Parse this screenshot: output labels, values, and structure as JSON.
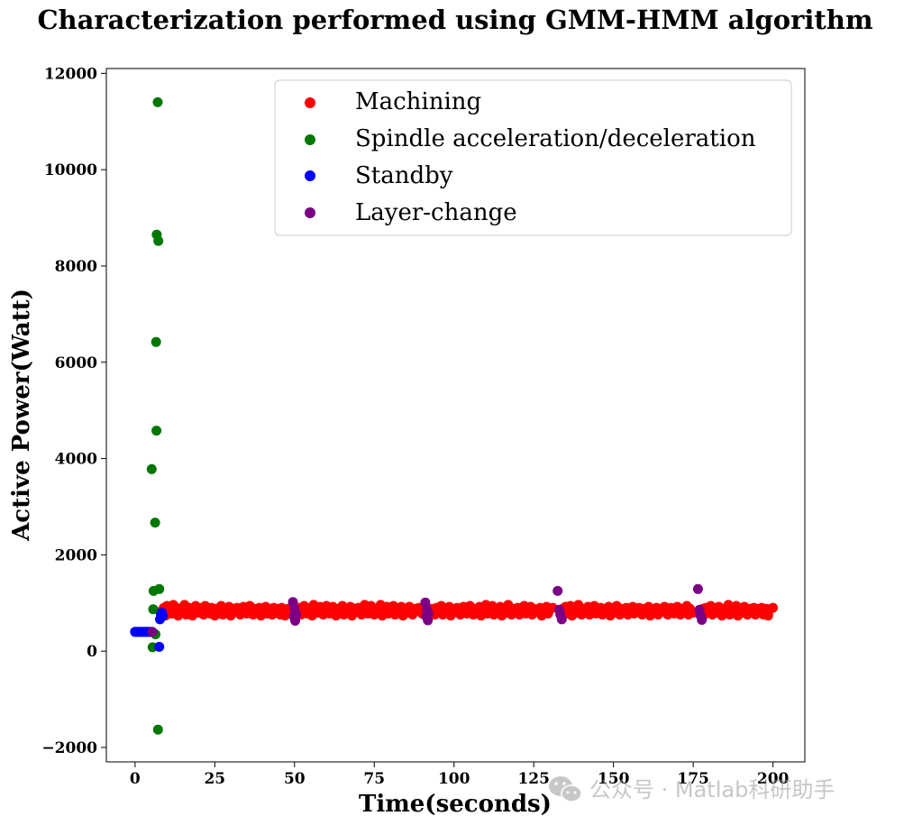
{
  "chart_data": {
    "type": "scatter",
    "title": "Characterization performed using GMM-HMM algorithm",
    "xlabel": "Time(seconds)",
    "ylabel": "Active Power(Watt)",
    "xlim": [
      -9,
      210
    ],
    "ylim": [
      -2300,
      12100
    ],
    "xticks": [
      0,
      25,
      50,
      75,
      100,
      125,
      150,
      175,
      200
    ],
    "yticks": [
      -2000,
      0,
      2000,
      4000,
      6000,
      8000,
      10000,
      12000
    ],
    "xtick_labels": [
      "0",
      "25",
      "50",
      "75",
      "100",
      "125",
      "150",
      "175",
      "200"
    ],
    "ytick_labels": [
      "−2000",
      "0",
      "2000",
      "4000",
      "6000",
      "8000",
      "10000",
      "12000"
    ],
    "legend_position": "top-right",
    "series": [
      {
        "name": "Machining",
        "color": "#ff0000",
        "points": [
          [
            8,
            820
          ],
          [
            9,
            900
          ],
          [
            9.5,
            740
          ],
          [
            10,
            940
          ],
          [
            11,
            860
          ],
          [
            11.5,
            780
          ],
          [
            12,
            960
          ],
          [
            13,
            900
          ],
          [
            13.5,
            740
          ],
          [
            14,
            880
          ],
          [
            15,
            820
          ],
          [
            15.5,
            960
          ],
          [
            16,
            760
          ],
          [
            17,
            900
          ],
          [
            17.5,
            840
          ],
          [
            18,
            740
          ],
          [
            19,
            940
          ],
          [
            19.5,
            880
          ],
          [
            20,
            800
          ],
          [
            21,
            900
          ],
          [
            21.5,
            760
          ],
          [
            22,
            940
          ],
          [
            23,
            840
          ],
          [
            23.5,
            780
          ],
          [
            24,
            900
          ],
          [
            25,
            740
          ],
          [
            25.5,
            880
          ],
          [
            26,
            820
          ],
          [
            27,
            940
          ],
          [
            27.5,
            760
          ],
          [
            28,
            880
          ],
          [
            29,
            800
          ],
          [
            29.5,
            920
          ],
          [
            30,
            740
          ],
          [
            31,
            880
          ],
          [
            31.5,
            820
          ],
          [
            32,
            900
          ],
          [
            33,
            760
          ],
          [
            33.5,
            880
          ],
          [
            34,
            920
          ],
          [
            35,
            780
          ],
          [
            35.5,
            860
          ],
          [
            36,
            940
          ],
          [
            37,
            760
          ],
          [
            37.5,
            880
          ],
          [
            38,
            820
          ],
          [
            39,
            900
          ],
          [
            39.5,
            740
          ],
          [
            40,
            860
          ],
          [
            41,
            920
          ],
          [
            41.5,
            780
          ],
          [
            42,
            880
          ],
          [
            43,
            760
          ],
          [
            43.5,
            900
          ],
          [
            44,
            820
          ],
          [
            45,
            880
          ],
          [
            45.5,
            760
          ],
          [
            46,
            900
          ],
          [
            47,
            740
          ],
          [
            48,
            880
          ],
          [
            49,
            820
          ],
          [
            51,
            900
          ],
          [
            52,
            760
          ],
          [
            53,
            940
          ],
          [
            53.5,
            840
          ],
          [
            54,
            780
          ],
          [
            55,
            900
          ],
          [
            55.5,
            740
          ],
          [
            56,
            960
          ],
          [
            57,
            880
          ],
          [
            57.5,
            800
          ],
          [
            58,
            920
          ],
          [
            59,
            760
          ],
          [
            59.5,
            880
          ],
          [
            60,
            940
          ],
          [
            61,
            780
          ],
          [
            61.5,
            860
          ],
          [
            62,
            920
          ],
          [
            63,
            740
          ],
          [
            63.5,
            880
          ],
          [
            64,
            820
          ],
          [
            65,
            940
          ],
          [
            65.5,
            760
          ],
          [
            66,
            880
          ],
          [
            67,
            800
          ],
          [
            67.5,
            920
          ],
          [
            68,
            740
          ],
          [
            69,
            880
          ],
          [
            69.5,
            820
          ],
          [
            70,
            900
          ],
          [
            71,
            760
          ],
          [
            71.5,
            880
          ],
          [
            72,
            960
          ],
          [
            73,
            780
          ],
          [
            73.5,
            860
          ],
          [
            74,
            940
          ],
          [
            75,
            760
          ],
          [
            75.5,
            880
          ],
          [
            76,
            820
          ],
          [
            77,
            960
          ],
          [
            77.5,
            740
          ],
          [
            78,
            880
          ],
          [
            79,
            920
          ],
          [
            79.5,
            780
          ],
          [
            80,
            860
          ],
          [
            81,
            940
          ],
          [
            81.5,
            760
          ],
          [
            82,
            880
          ],
          [
            83,
            820
          ],
          [
            83.5,
            920
          ],
          [
            84,
            740
          ],
          [
            85,
            880
          ],
          [
            85.5,
            800
          ],
          [
            86,
            920
          ],
          [
            87,
            760
          ],
          [
            87.5,
            880
          ],
          [
            88,
            840
          ],
          [
            89,
            900
          ],
          [
            90,
            780
          ],
          [
            93,
            880
          ],
          [
            94,
            760
          ],
          [
            94.5,
            900
          ],
          [
            95,
            820
          ],
          [
            96,
            940
          ],
          [
            96.5,
            760
          ],
          [
            97,
            880
          ],
          [
            98,
            800
          ],
          [
            98.5,
            920
          ],
          [
            99,
            740
          ],
          [
            100,
            880
          ],
          [
            100.5,
            820
          ],
          [
            101,
            900
          ],
          [
            102,
            760
          ],
          [
            102.5,
            880
          ],
          [
            103,
            920
          ],
          [
            104,
            780
          ],
          [
            104.5,
            860
          ],
          [
            105,
            940
          ],
          [
            106,
            760
          ],
          [
            106.5,
            880
          ],
          [
            107,
            820
          ],
          [
            108,
            920
          ],
          [
            108.5,
            740
          ],
          [
            109,
            880
          ],
          [
            110,
            960
          ],
          [
            110.5,
            780
          ],
          [
            111,
            860
          ],
          [
            112,
            940
          ],
          [
            112.5,
            760
          ],
          [
            113,
            880
          ],
          [
            114,
            820
          ],
          [
            114.5,
            920
          ],
          [
            115,
            740
          ],
          [
            116,
            880
          ],
          [
            116.5,
            800
          ],
          [
            117,
            960
          ],
          [
            118,
            760
          ],
          [
            118.5,
            880
          ],
          [
            119,
            840
          ],
          [
            120,
            900
          ],
          [
            120.5,
            760
          ],
          [
            121,
            880
          ],
          [
            122,
            940
          ],
          [
            122.5,
            780
          ],
          [
            123,
            860
          ],
          [
            124,
            920
          ],
          [
            124.5,
            760
          ],
          [
            125,
            880
          ],
          [
            126,
            820
          ],
          [
            127,
            900
          ],
          [
            127.5,
            740
          ],
          [
            128,
            880
          ],
          [
            129,
            920
          ],
          [
            129.5,
            780
          ],
          [
            130,
            860
          ],
          [
            131,
            900
          ],
          [
            134,
            880
          ],
          [
            134.5,
            760
          ],
          [
            135,
            920
          ],
          [
            136,
            820
          ],
          [
            136.5,
            940
          ],
          [
            137,
            740
          ],
          [
            138,
            880
          ],
          [
            138.5,
            800
          ],
          [
            139,
            960
          ],
          [
            140,
            760
          ],
          [
            140.5,
            880
          ],
          [
            141,
            840
          ],
          [
            142,
            920
          ],
          [
            142.5,
            760
          ],
          [
            143,
            880
          ],
          [
            144,
            940
          ],
          [
            144.5,
            780
          ],
          [
            145,
            860
          ],
          [
            146,
            900
          ],
          [
            146.5,
            760
          ],
          [
            147,
            880
          ],
          [
            148,
            820
          ],
          [
            148.5,
            920
          ],
          [
            149,
            740
          ],
          [
            150,
            880
          ],
          [
            150.5,
            800
          ],
          [
            151,
            940
          ],
          [
            152,
            760
          ],
          [
            152.5,
            880
          ],
          [
            153,
            840
          ],
          [
            154,
            900
          ],
          [
            154.5,
            760
          ],
          [
            155,
            880
          ],
          [
            156,
            920
          ],
          [
            156.5,
            780
          ],
          [
            157,
            860
          ],
          [
            158,
            900
          ],
          [
            159,
            760
          ],
          [
            159.5,
            880
          ],
          [
            160,
            820
          ],
          [
            161,
            920
          ],
          [
            161.5,
            740
          ],
          [
            162,
            880
          ],
          [
            163,
            800
          ],
          [
            163.5,
            900
          ],
          [
            164,
            760
          ],
          [
            165,
            880
          ],
          [
            165.5,
            840
          ],
          [
            166,
            920
          ],
          [
            167,
            760
          ],
          [
            167.5,
            880
          ],
          [
            168,
            900
          ],
          [
            169,
            780
          ],
          [
            169.5,
            860
          ],
          [
            170,
            920
          ],
          [
            171,
            760
          ],
          [
            171.5,
            880
          ],
          [
            172,
            820
          ],
          [
            173,
            940
          ],
          [
            173.5,
            760
          ],
          [
            174,
            880
          ],
          [
            175,
            800
          ],
          [
            178,
            880
          ],
          [
            178.5,
            760
          ],
          [
            179,
            900
          ],
          [
            180,
            820
          ],
          [
            180.5,
            940
          ],
          [
            181,
            760
          ],
          [
            182,
            880
          ],
          [
            182.5,
            800
          ],
          [
            183,
            920
          ],
          [
            184,
            740
          ],
          [
            184.5,
            880
          ],
          [
            185,
            840
          ],
          [
            186,
            960
          ],
          [
            186.5,
            760
          ],
          [
            187,
            880
          ],
          [
            188,
            820
          ],
          [
            188.5,
            940
          ],
          [
            189,
            740
          ],
          [
            190,
            880
          ],
          [
            190.5,
            800
          ],
          [
            191,
            920
          ],
          [
            192,
            760
          ],
          [
            192.5,
            880
          ],
          [
            193,
            840
          ],
          [
            194,
            900
          ],
          [
            194.5,
            760
          ],
          [
            195,
            880
          ],
          [
            196,
            820
          ],
          [
            196.5,
            900
          ],
          [
            197,
            760
          ],
          [
            198,
            880
          ],
          [
            198.5,
            740
          ],
          [
            199,
            860
          ],
          [
            200,
            900
          ]
        ]
      },
      {
        "name": "Spindle acceleration/deceleration",
        "color": "#007700",
        "points": [
          [
            7.1,
            11400
          ],
          [
            6.8,
            8650
          ],
          [
            7.3,
            8520
          ],
          [
            6.6,
            6420
          ],
          [
            6.7,
            4580
          ],
          [
            5.2,
            3780
          ],
          [
            6.3,
            2670
          ],
          [
            5.8,
            1250
          ],
          [
            7.6,
            1290
          ],
          [
            5.7,
            870
          ],
          [
            6.4,
            350
          ],
          [
            5.5,
            80
          ],
          [
            7.2,
            -1630
          ]
        ]
      },
      {
        "name": "Standby",
        "color": "#0000ff",
        "points": [
          [
            0,
            400
          ],
          [
            0.5,
            400
          ],
          [
            1,
            400
          ],
          [
            1.5,
            400
          ],
          [
            2,
            400
          ],
          [
            2.5,
            400
          ],
          [
            3,
            400
          ],
          [
            3.5,
            400
          ],
          [
            4,
            400
          ],
          [
            4.5,
            400
          ],
          [
            5,
            400
          ],
          [
            7.8,
            660
          ],
          [
            8.1,
            760
          ],
          [
            8.4,
            800
          ],
          [
            8.7,
            730
          ],
          [
            7.6,
            90
          ]
        ]
      },
      {
        "name": "Layer-change",
        "color": "#7b0085",
        "points": [
          [
            5.4,
            400
          ],
          [
            49.5,
            1020
          ],
          [
            50,
            880
          ],
          [
            49.8,
            720
          ],
          [
            50.2,
            630
          ],
          [
            50.5,
            760
          ],
          [
            91,
            1010
          ],
          [
            91.5,
            870
          ],
          [
            91.3,
            720
          ],
          [
            91.8,
            640
          ],
          [
            92,
            780
          ],
          [
            132.5,
            1250
          ],
          [
            133,
            860
          ],
          [
            133.3,
            760
          ],
          [
            133.8,
            660
          ],
          [
            176.5,
            1290
          ],
          [
            177,
            860
          ],
          [
            177.3,
            740
          ],
          [
            177.7,
            650
          ]
        ]
      }
    ]
  },
  "watermark": {
    "text": "公众号 · Matlab科研助手",
    "icon": "wechat-icon"
  }
}
